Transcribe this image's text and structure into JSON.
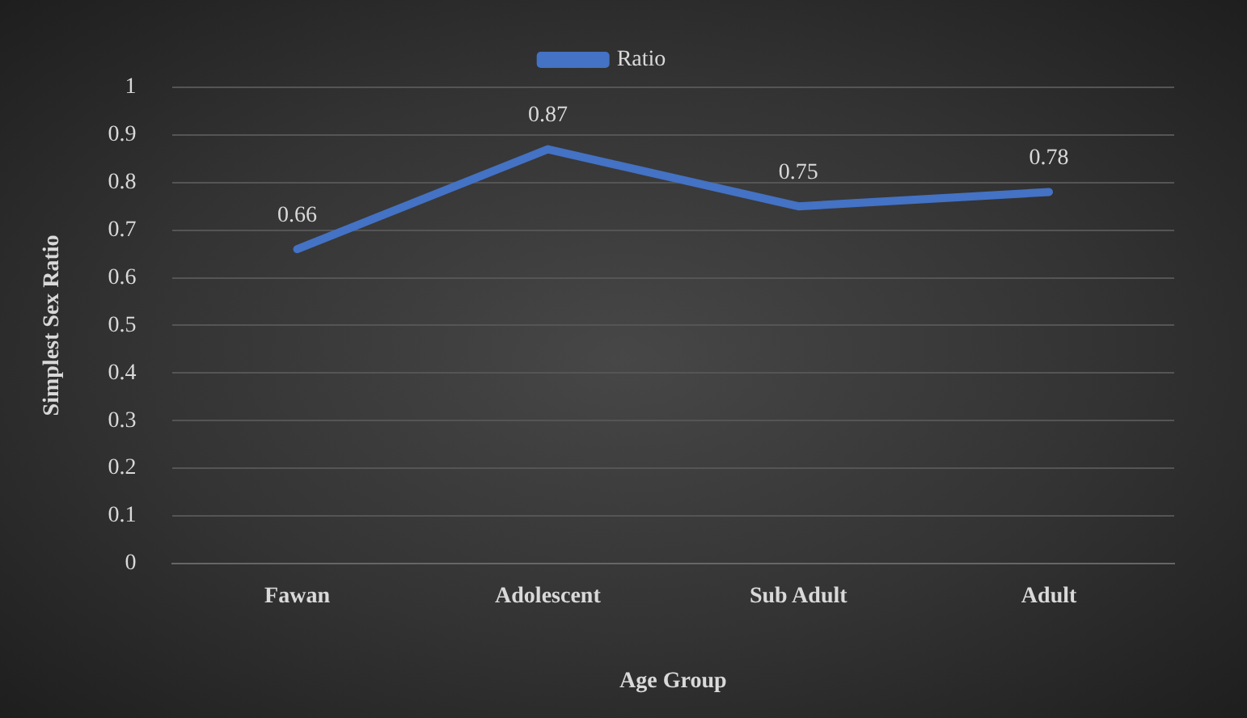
{
  "chart_data": {
    "type": "line",
    "xlabel": "Age Group",
    "ylabel": "Simplest Sex Ratio",
    "categories": [
      "Fawan",
      "Adolescent",
      "Sub Adult",
      "Adult"
    ],
    "series": [
      {
        "name": "Ratio",
        "color": "#4472c4",
        "values": [
          0.66,
          0.87,
          0.75,
          0.78
        ]
      }
    ],
    "ylim": [
      0,
      1
    ],
    "yticks": [
      0,
      0.1,
      0.2,
      0.3,
      0.4,
      0.5,
      0.6,
      0.7,
      0.8,
      0.9,
      1
    ],
    "grid": "y",
    "legend": "top",
    "marker": "none",
    "line_style": "solid",
    "data_labels": true
  }
}
